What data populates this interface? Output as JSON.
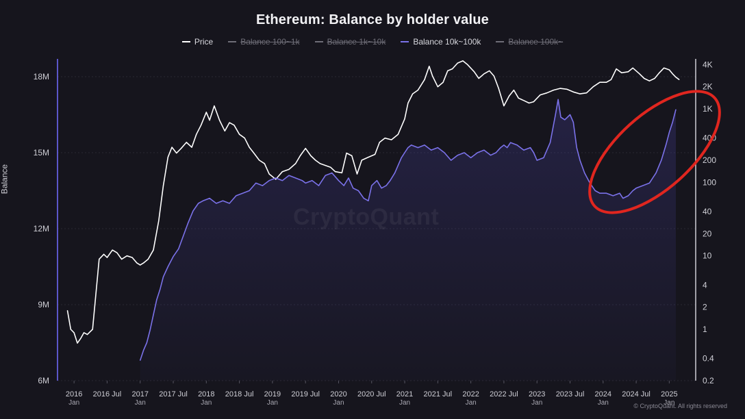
{
  "title": "Ethereum: Balance by holder value",
  "watermark": "CryptoQuant",
  "copyright": "© CryptoQuant. All rights reserved",
  "legend": [
    {
      "label": "Price",
      "color": "#ffffff",
      "hidden": false
    },
    {
      "label": "Balance 100~1k",
      "color": "#6f6e78",
      "hidden": true
    },
    {
      "label": "Balance 1k~10k",
      "color": "#6f6e78",
      "hidden": true
    },
    {
      "label": "Balance 10k~100k",
      "color": "#7b72ea",
      "hidden": false
    },
    {
      "label": "Balance 100k~",
      "color": "#6f6e78",
      "hidden": true
    }
  ],
  "chart_data": {
    "type": "line",
    "title": "Ethereum: Balance by holder value",
    "ylabel": "Balance",
    "y_left": {
      "ticks": [
        "6M",
        "9M",
        "12M",
        "15M",
        "18M"
      ],
      "values": [
        6000000,
        9000000,
        12000000,
        15000000,
        18000000
      ],
      "range": [
        6000000,
        18000000
      ]
    },
    "y_right": {
      "scale": "log",
      "ticks": [
        "0.2",
        "0.4",
        "1",
        "2",
        "4",
        "10",
        "20",
        "40",
        "100",
        "200",
        "400",
        "1K",
        "2K",
        "4K"
      ],
      "values": [
        0.2,
        0.4,
        1,
        2,
        4,
        10,
        20,
        40,
        100,
        200,
        400,
        1000,
        2000,
        4000
      ],
      "range": [
        0.2,
        5000
      ]
    },
    "x_range": [
      2015.75,
      2025.4
    ],
    "x_ticks": [
      {
        "value": 2016.0,
        "label": "2016",
        "sub": "Jan"
      },
      {
        "value": 2016.5,
        "label": "2016 Jul",
        "sub": ""
      },
      {
        "value": 2017.0,
        "label": "2017",
        "sub": "Jan"
      },
      {
        "value": 2017.5,
        "label": "2017 Jul",
        "sub": ""
      },
      {
        "value": 2018.0,
        "label": "2018",
        "sub": "Jan"
      },
      {
        "value": 2018.5,
        "label": "2018 Jul",
        "sub": ""
      },
      {
        "value": 2019.0,
        "label": "2019",
        "sub": "Jan"
      },
      {
        "value": 2019.5,
        "label": "2019 Jul",
        "sub": ""
      },
      {
        "value": 2020.0,
        "label": "2020",
        "sub": "Jan"
      },
      {
        "value": 2020.5,
        "label": "2020 Jul",
        "sub": ""
      },
      {
        "value": 2021.0,
        "label": "2021",
        "sub": "Jan"
      },
      {
        "value": 2021.5,
        "label": "2021 Jul",
        "sub": ""
      },
      {
        "value": 2022.0,
        "label": "2022",
        "sub": "Jan"
      },
      {
        "value": 2022.5,
        "label": "2022 Jul",
        "sub": ""
      },
      {
        "value": 2023.0,
        "label": "2023",
        "sub": "Jan"
      },
      {
        "value": 2023.5,
        "label": "2023 Jul",
        "sub": ""
      },
      {
        "value": 2024.0,
        "label": "2024",
        "sub": "Jan"
      },
      {
        "value": 2024.5,
        "label": "2024 Jul",
        "sub": ""
      },
      {
        "value": 2025.0,
        "label": "2025",
        "sub": "Jan"
      }
    ],
    "series": [
      {
        "name": "Price",
        "axis": "right",
        "color": "#ffffff",
        "x": [
          2015.9,
          2015.95,
          2016.0,
          2016.05,
          2016.1,
          2016.15,
          2016.2,
          2016.28,
          2016.38,
          2016.45,
          2016.5,
          2016.58,
          2016.65,
          2016.72,
          2016.8,
          2016.88,
          2016.95,
          2017.0,
          2017.05,
          2017.12,
          2017.2,
          2017.28,
          2017.35,
          2017.42,
          2017.48,
          2017.55,
          2017.62,
          2017.7,
          2017.78,
          2017.85,
          2017.92,
          2018.0,
          2018.05,
          2018.12,
          2018.2,
          2018.28,
          2018.35,
          2018.42,
          2018.5,
          2018.58,
          2018.65,
          2018.72,
          2018.8,
          2018.88,
          2018.95,
          2019.05,
          2019.15,
          2019.25,
          2019.35,
          2019.42,
          2019.5,
          2019.58,
          2019.65,
          2019.72,
          2019.8,
          2019.88,
          2019.95,
          2020.05,
          2020.12,
          2020.2,
          2020.28,
          2020.35,
          2020.45,
          2020.55,
          2020.62,
          2020.7,
          2020.8,
          2020.9,
          2021.0,
          2021.05,
          2021.12,
          2021.2,
          2021.3,
          2021.37,
          2021.42,
          2021.5,
          2021.58,
          2021.65,
          2021.72,
          2021.8,
          2021.88,
          2021.95,
          2022.05,
          2022.12,
          2022.2,
          2022.28,
          2022.35,
          2022.42,
          2022.5,
          2022.58,
          2022.65,
          2022.72,
          2022.8,
          2022.88,
          2022.95,
          2023.05,
          2023.15,
          2023.25,
          2023.35,
          2023.45,
          2023.55,
          2023.65,
          2023.75,
          2023.85,
          2023.95,
          2024.05,
          2024.12,
          2024.2,
          2024.28,
          2024.38,
          2024.45,
          2024.55,
          2024.62,
          2024.7,
          2024.78,
          2024.85,
          2024.92,
          2025.0,
          2025.05,
          2025.1,
          2025.15
        ],
        "values": [
          1.8,
          1.0,
          0.9,
          0.65,
          0.75,
          0.9,
          0.85,
          1.0,
          9.0,
          10.5,
          9.5,
          12.0,
          11.0,
          9.0,
          10.0,
          9.5,
          8.0,
          7.5,
          8.0,
          9.0,
          12.0,
          30.0,
          90.0,
          220.0,
          300.0,
          250.0,
          290.0,
          350.0,
          300.0,
          450.0,
          600.0,
          900.0,
          700.0,
          1100.0,
          700.0,
          500.0,
          650.0,
          600.0,
          450.0,
          400.0,
          300.0,
          250.0,
          200.0,
          180.0,
          130.0,
          110.0,
          140.0,
          150.0,
          180.0,
          230.0,
          290.0,
          230.0,
          200.0,
          180.0,
          170.0,
          160.0,
          140.0,
          135.0,
          250.0,
          230.0,
          130.0,
          200.0,
          220.0,
          240.0,
          350.0,
          400.0,
          380.0,
          450.0,
          730.0,
          1200.0,
          1600.0,
          1800.0,
          2500.0,
          3800.0,
          2800.0,
          2000.0,
          2300.0,
          3300.0,
          3500.0,
          4200.0,
          4500.0,
          4000.0,
          3200.0,
          2600.0,
          3000.0,
          3300.0,
          2800.0,
          1900.0,
          1100.0,
          1500.0,
          1800.0,
          1400.0,
          1300.0,
          1200.0,
          1250.0,
          1550.0,
          1650.0,
          1800.0,
          1900.0,
          1850.0,
          1700.0,
          1600.0,
          1650.0,
          2000.0,
          2300.0,
          2300.0,
          2500.0,
          3500.0,
          3100.0,
          3200.0,
          3600.0,
          3000.0,
          2600.0,
          2400.0,
          2600.0,
          3100.0,
          3600.0,
          3400.0,
          3000.0,
          2700.0,
          2500.0
        ]
      },
      {
        "name": "Balance 10k~100k",
        "axis": "left",
        "color": "#7b72ea",
        "x": [
          2017.0,
          2017.05,
          2017.1,
          2017.15,
          2017.2,
          2017.25,
          2017.3,
          2017.35,
          2017.42,
          2017.5,
          2017.58,
          2017.65,
          2017.72,
          2017.8,
          2017.88,
          2017.95,
          2018.05,
          2018.15,
          2018.25,
          2018.35,
          2018.45,
          2018.55,
          2018.65,
          2018.75,
          2018.85,
          2018.95,
          2019.05,
          2019.15,
          2019.25,
          2019.35,
          2019.45,
          2019.5,
          2019.6,
          2019.7,
          2019.8,
          2019.9,
          2020.0,
          2020.08,
          2020.15,
          2020.22,
          2020.3,
          2020.38,
          2020.45,
          2020.5,
          2020.58,
          2020.65,
          2020.72,
          2020.78,
          2020.85,
          2020.95,
          2021.0,
          2021.05,
          2021.1,
          2021.2,
          2021.3,
          2021.4,
          2021.5,
          2021.6,
          2021.7,
          2021.8,
          2021.9,
          2022.0,
          2022.1,
          2022.2,
          2022.3,
          2022.38,
          2022.45,
          2022.5,
          2022.55,
          2022.6,
          2022.7,
          2022.8,
          2022.9,
          2022.95,
          2023.0,
          2023.1,
          2023.2,
          2023.28,
          2023.32,
          2023.36,
          2023.42,
          2023.5,
          2023.55,
          2023.6,
          2023.65,
          2023.72,
          2023.8,
          2023.88,
          2023.95,
          2024.05,
          2024.15,
          2024.25,
          2024.3,
          2024.38,
          2024.45,
          2024.5,
          2024.6,
          2024.7,
          2024.75,
          2024.8,
          2024.88,
          2024.95,
          2025.0,
          2025.05,
          2025.1
        ],
        "values": [
          6800000,
          7200000,
          7500000,
          8000000,
          8600000,
          9200000,
          9600000,
          10100000,
          10500000,
          10900000,
          11200000,
          11700000,
          12200000,
          12700000,
          13000000,
          13100000,
          13200000,
          13000000,
          13100000,
          13000000,
          13300000,
          13400000,
          13500000,
          13800000,
          13700000,
          13900000,
          14000000,
          13900000,
          14100000,
          14000000,
          13900000,
          13800000,
          13900000,
          13700000,
          14100000,
          14200000,
          13900000,
          13700000,
          14000000,
          13600000,
          13500000,
          13200000,
          13100000,
          13700000,
          13900000,
          13600000,
          13700000,
          13900000,
          14200000,
          14800000,
          15000000,
          15200000,
          15300000,
          15200000,
          15300000,
          15100000,
          15200000,
          15000000,
          14700000,
          14900000,
          15000000,
          14800000,
          15000000,
          15100000,
          14900000,
          15000000,
          15200000,
          15300000,
          15200000,
          15400000,
          15300000,
          15100000,
          15200000,
          15000000,
          14700000,
          14800000,
          15400000,
          16500000,
          17100000,
          16400000,
          16300000,
          16500000,
          16200000,
          15200000,
          14700000,
          14200000,
          13800000,
          13500000,
          13400000,
          13400000,
          13300000,
          13400000,
          13200000,
          13300000,
          13500000,
          13600000,
          13700000,
          13800000,
          14000000,
          14200000,
          14700000,
          15300000,
          15800000,
          16200000,
          16700000
        ]
      }
    ]
  }
}
